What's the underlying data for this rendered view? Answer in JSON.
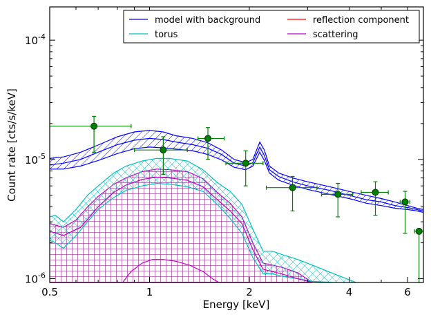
{
  "chart_data": {
    "type": "line",
    "xlabel": "Energy [keV]",
    "ylabel": "Count rate [cts/s/keV]",
    "x_scale": "log",
    "y_scale": "log",
    "xlim": [
      0.5,
      6.7
    ],
    "ylim": [
      9.3e-07,
      0.00019
    ],
    "x_ticks": [
      {
        "value": 0.5,
        "label": "0.5"
      },
      {
        "value": 1,
        "label": "1"
      },
      {
        "value": 2,
        "label": "2"
      },
      {
        "value": 4,
        "label": "4"
      },
      {
        "value": 6,
        "label": "6"
      }
    ],
    "y_ticks": [
      {
        "value": 1e-06,
        "base": "10",
        "exp": "-6"
      },
      {
        "value": 1e-05,
        "base": "10",
        "exp": "-5"
      },
      {
        "value": 0.0001,
        "base": "10",
        "exp": "-4"
      }
    ],
    "legend": {
      "position": "top-right",
      "columns": 2,
      "entries": [
        {
          "label": "model with background",
          "color": "#0000ff"
        },
        {
          "label": "reflection component",
          "color": "#ff0000"
        },
        {
          "label": "torus",
          "color": "#00bfbf"
        },
        {
          "label": "scattering",
          "color": "#bf00bf"
        }
      ]
    },
    "bands": [
      {
        "series": "model with background",
        "color": "#0000ff",
        "hatch": "diagonal",
        "x": [
          0.5,
          0.55,
          0.62,
          0.7,
          0.8,
          0.9,
          1.0,
          1.1,
          1.2,
          1.35,
          1.5,
          1.65,
          1.8,
          1.95,
          2.05,
          2.15,
          2.22,
          2.3,
          2.45,
          2.7,
          3.0,
          3.5,
          4.0,
          4.5,
          5.0,
          5.5,
          6.0,
          6.4,
          6.7
        ],
        "upper": [
          1.02e-05,
          1.05e-05,
          1.15e-05,
          1.32e-05,
          1.55e-05,
          1.7e-05,
          1.75e-05,
          1.7e-05,
          1.58e-05,
          1.5e-05,
          1.38e-05,
          1.2e-05,
          1e-05,
          9.4e-06,
          1e-05,
          1.4e-05,
          1.2e-05,
          8.8e-06,
          7.7e-06,
          7e-06,
          6.5e-06,
          5.9e-06,
          5.4e-06,
          5e-06,
          4.7e-06,
          4.4e-06,
          4.1e-06,
          3.9e-06,
          3.8e-06
        ],
        "lower": [
          8.3e-06,
          8.3e-06,
          8.8e-06,
          9.8e-06,
          1.12e-05,
          1.23e-05,
          1.27e-05,
          1.25e-05,
          1.22e-05,
          1.18e-05,
          1.1e-05,
          9.9e-06,
          8.6e-06,
          8.2e-06,
          8.8e-06,
          1.15e-05,
          9.8e-06,
          7.7e-06,
          6.7e-06,
          6.1e-06,
          5.6e-06,
          5.1e-06,
          4.7e-06,
          4.3e-06,
          4.1e-06,
          3.9e-06,
          3.8e-06,
          3.7e-06,
          3.6e-06
        ],
        "mid": [
          9e-06,
          9.3e-06,
          1e-05,
          1.15e-05,
          1.33e-05,
          1.45e-05,
          1.5e-05,
          1.47e-05,
          1.4e-05,
          1.33e-05,
          1.24e-05,
          1.1e-05,
          9.3e-06,
          8.8e-06,
          9.4e-06,
          1.27e-05,
          1.08e-05,
          8.2e-06,
          7.2e-06,
          6.5e-06,
          6e-06,
          5.5e-06,
          5e-06,
          4.6e-06,
          4.4e-06,
          4.1e-06,
          3.95e-06,
          3.8e-06,
          3.7e-06
        ]
      },
      {
        "series": "torus",
        "color": "#00bfbf",
        "hatch": "cross",
        "x": [
          0.5,
          0.52,
          0.55,
          0.6,
          0.65,
          0.7,
          0.78,
          0.85,
          0.95,
          1.05,
          1.15,
          1.3,
          1.45,
          1.6,
          1.75,
          1.9,
          2.05,
          2.2,
          2.35,
          2.5,
          2.8,
          3.1,
          3.6,
          4.2
        ],
        "upper": [
          3.3e-06,
          3.4e-06,
          3e-06,
          3.8e-06,
          5e-06,
          6e-06,
          7.7e-06,
          8.8e-06,
          9.7e-06,
          1.02e-05,
          1.02e-05,
          9.7e-06,
          8.2e-06,
          6.4e-06,
          5.4e-06,
          4.2e-06,
          2.6e-06,
          1.7e-06,
          1.7e-06,
          1.6e-06,
          1.45e-06,
          1.3e-06,
          1.1e-06,
          9.3e-07
        ],
        "lower": [
          2.1e-06,
          2e-06,
          1.8e-06,
          2.3e-06,
          3e-06,
          3.8e-06,
          4.8e-06,
          5.5e-06,
          6e-06,
          6.3e-06,
          6.2e-06,
          5.9e-06,
          5.4e-06,
          4.2e-06,
          3.2e-06,
          2.4e-06,
          1.5e-06,
          1.1e-06,
          1.1e-06,
          1.05e-06,
          1e-06,
          9.5e-07,
          9.3e-07,
          9.3e-07
        ]
      },
      {
        "series": "scattering",
        "color": "#bf00bf",
        "hatch": "grid",
        "x": [
          0.5,
          0.55,
          0.6,
          0.65,
          0.7,
          0.78,
          0.85,
          0.95,
          1.05,
          1.15,
          1.3,
          1.45,
          1.6,
          1.75,
          1.9,
          2.05,
          2.2,
          2.35,
          2.5,
          2.8,
          3.1
        ],
        "upper": [
          2.9e-06,
          2.7e-06,
          3.1e-06,
          4e-06,
          4.9e-06,
          6.2e-06,
          7e-06,
          7.9e-06,
          8.3e-06,
          8.2e-06,
          7.9e-06,
          6.9e-06,
          5.3e-06,
          4.3e-06,
          3.3e-06,
          2e-06,
          1.35e-06,
          1.3e-06,
          1.25e-06,
          1.12e-06,
          9.3e-07
        ],
        "lower": [
          9.3e-07,
          9.3e-07,
          9.3e-07,
          9.3e-07,
          9.3e-07,
          9.3e-07,
          9.3e-07,
          9.3e-07,
          9.3e-07,
          9.3e-07,
          9.3e-07,
          9.3e-07,
          9.3e-07,
          9.3e-07,
          9.3e-07,
          9.3e-07,
          9.3e-07,
          9.3e-07,
          9.3e-07,
          9.3e-07,
          9.3e-07
        ]
      }
    ],
    "lines": [
      {
        "color": "#bf00bf",
        "x": [
          0.5,
          0.55,
          0.62,
          0.7,
          0.78,
          0.85,
          0.95,
          1.05,
          1.15,
          1.3,
          1.45,
          1.6,
          1.75,
          1.9,
          2.05,
          2.2,
          2.5,
          2.8,
          3.1
        ],
        "y": [
          2.5e-06,
          2.3e-06,
          2.7e-06,
          4e-06,
          5.3e-06,
          6.1e-06,
          6.8e-06,
          7.1e-06,
          7e-06,
          6.7e-06,
          5.9e-06,
          4.6e-06,
          3.7e-06,
          2.9e-06,
          1.75e-06,
          1.2e-06,
          1.1e-06,
          1e-06,
          9.3e-07
        ]
      },
      {
        "color": "#bf00bf",
        "x": [
          0.83,
          0.88,
          0.95,
          1.02,
          1.1,
          1.2,
          1.32,
          1.45,
          1.55,
          1.62
        ],
        "y": [
          9.3e-07,
          1.15e-06,
          1.35e-06,
          1.45e-06,
          1.45e-06,
          1.4e-06,
          1.3e-06,
          1.15e-06,
          1e-06,
          9.3e-07
        ]
      }
    ],
    "data_points": {
      "color": "#008000",
      "points": [
        {
          "x": 0.68,
          "y": 1.9e-05,
          "xerr": [
            0.18,
            0.2
          ],
          "yerr": [
            7.5e-06,
            4e-06
          ]
        },
        {
          "x": 1.1,
          "y": 1.2e-05,
          "xerr": [
            0.2,
            0.2
          ],
          "yerr": [
            4.5e-06,
            3.5e-06
          ]
        },
        {
          "x": 1.5,
          "y": 1.5e-05,
          "xerr": [
            0.1,
            0.18
          ],
          "yerr": [
            5e-06,
            3.5e-06
          ]
        },
        {
          "x": 1.95,
          "y": 9.3e-06,
          "xerr": [
            0.25,
            0.25
          ],
          "yerr": [
            3.3e-06,
            2.5e-06
          ]
        },
        {
          "x": 2.7,
          "y": 5.8e-06,
          "xerr": [
            0.45,
            0.5
          ],
          "yerr": [
            2.1e-06,
            1.4e-06
          ]
        },
        {
          "x": 3.7,
          "y": 5.1e-06,
          "xerr": [
            0.4,
            0.4
          ],
          "yerr": [
            1.8e-06,
            1.2e-06
          ]
        },
        {
          "x": 4.8,
          "y": 5.3e-06,
          "xerr": [
            0.45,
            0.45
          ],
          "yerr": [
            1.9e-06,
            1.2e-06
          ]
        },
        {
          "x": 5.9,
          "y": 4.4e-06,
          "xerr": [
            0.2,
            0.2
          ],
          "yerr": [
            2e-06,
            1e-06
          ]
        },
        {
          "x": 6.5,
          "y": 2.5e-06,
          "xerr": [
            0.2,
            0.2
          ],
          "yerr": [
            1.57e-06,
            0
          ]
        }
      ]
    }
  }
}
